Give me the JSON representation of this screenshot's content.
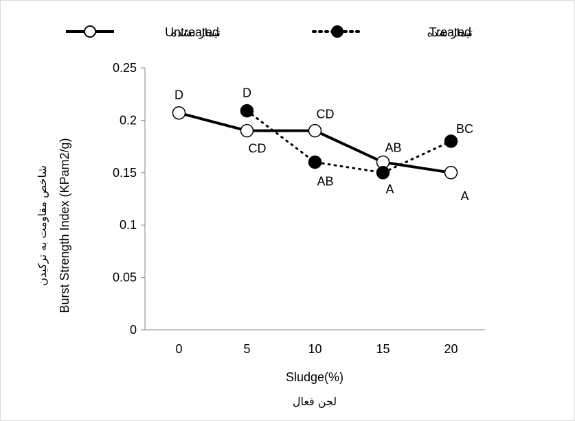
{
  "chart_data": {
    "type": "line",
    "x": [
      0,
      5,
      10,
      15,
      20
    ],
    "xlabel": "Sludge(%)",
    "xlabel_fa": "لجن فعال",
    "ylabel": "Burst Strength Index (KPam2/g)",
    "ylabel_fa": "شاخص مقاومت به ترکیدن",
    "ylim": [
      0,
      0.25
    ],
    "yticks": [
      0,
      0.05,
      0.1,
      0.15,
      0.2,
      0.25
    ],
    "ytick_labels": [
      "0",
      "0.05",
      "0.1",
      "0.15",
      "0.2",
      "0.25"
    ],
    "xtick_labels": [
      "0",
      "5",
      "10",
      "15",
      "20"
    ],
    "grid": false,
    "legend_position": "top",
    "series": [
      {
        "name": "Untreated",
        "name_fa": "تیمار نشده",
        "values": [
          0.207,
          0.19,
          0.19,
          0.16,
          0.15
        ],
        "labels": [
          "D",
          "CD",
          "CD",
          "AB",
          "A"
        ],
        "line": "solid",
        "marker": "open-circle",
        "color": "#000000"
      },
      {
        "name": "Treated",
        "name_fa": "تیمار شده",
        "x": [
          5,
          10,
          15,
          20
        ],
        "values": [
          0.209,
          0.16,
          0.15,
          0.18
        ],
        "labels": [
          "D",
          "AB",
          "A",
          "BC"
        ],
        "line": "dotted",
        "marker": "filled-circle",
        "color": "#000000"
      }
    ]
  }
}
